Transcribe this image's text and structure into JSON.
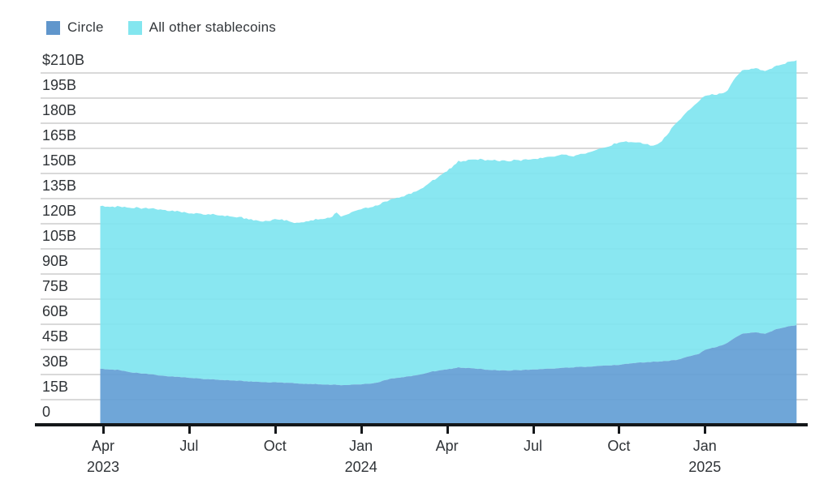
{
  "legend": {
    "items": [
      {
        "label": "Circle",
        "color": "#6096cc"
      },
      {
        "label": "All other stablecoins",
        "color": "#83e6ef"
      }
    ]
  },
  "colors": {
    "circle_area": "#5f9cd4",
    "other_area": "#7ce4ef",
    "gridline": "#d9d9d9",
    "axis": "#14171a",
    "text": "#2f3337"
  },
  "chart_data": {
    "type": "area",
    "stacked": true,
    "title": "",
    "xlabel": "",
    "ylabel": "",
    "unit": "USD billions",
    "ylim": [
      0,
      218
    ],
    "grid": true,
    "legend_position": "top-left",
    "y_tick_values": [
      0,
      15,
      30,
      45,
      60,
      75,
      90,
      105,
      120,
      135,
      150,
      165,
      180,
      195,
      210
    ],
    "y_tick_labels": [
      "0",
      "15B",
      "30B",
      "45B",
      "60B",
      "75B",
      "90B",
      "105B",
      "120B",
      "135B",
      "150B",
      "165B",
      "180B",
      "195B",
      "$210B"
    ],
    "x_axis_unit": "months since Apr 2023",
    "x_ticks": [
      {
        "label": "Apr",
        "year": "2023",
        "m": 0
      },
      {
        "label": "Jul",
        "year": "",
        "m": 3
      },
      {
        "label": "Oct",
        "year": "",
        "m": 6
      },
      {
        "label": "Jan",
        "year": "2024",
        "m": 9
      },
      {
        "label": "Apr",
        "year": "",
        "m": 12
      },
      {
        "label": "Jul",
        "year": "",
        "m": 15
      },
      {
        "label": "Oct",
        "year": "",
        "m": 18
      },
      {
        "label": "Jan",
        "year": "2025",
        "m": 21
      }
    ],
    "x": [
      -0.1,
      0.5,
      1,
      1.5,
      2,
      2.5,
      3,
      3.5,
      4,
      4.5,
      5,
      5.5,
      6,
      6.4,
      6.6,
      7,
      7.5,
      8,
      8.15,
      8.3,
      8.5,
      9,
      9.5,
      10,
      10.5,
      11,
      11.5,
      12,
      12.4,
      13,
      13.5,
      14,
      14.5,
      15,
      15.5,
      16,
      16.5,
      17,
      17.5,
      18,
      18.5,
      19,
      19.2,
      19.5,
      20,
      20.4,
      20.8,
      21,
      21.5,
      21.8,
      22,
      22.3,
      22.7,
      23.1,
      23.5,
      23.8,
      24.2
    ],
    "series": [
      {
        "name": "Circle",
        "values": [
          33.4,
          32.8,
          31.3,
          30.4,
          29.4,
          28.7,
          28.1,
          27.4,
          26.9,
          26.5,
          26.0,
          25.6,
          25.3,
          25.1,
          25.0,
          24.5,
          24.2,
          23.9,
          23.9,
          23.8,
          23.8,
          24.0,
          25.0,
          27.3,
          28.5,
          29.7,
          31.8,
          33.0,
          34.2,
          33.6,
          32.7,
          32.4,
          32.6,
          32.9,
          33.4,
          33.9,
          34.4,
          34.8,
          35.3,
          35.8,
          36.8,
          37.4,
          37.6,
          37.9,
          38.6,
          40.6,
          42.3,
          44.7,
          46.9,
          49.0,
          51.5,
          54.3,
          55.2,
          54.4,
          57.0,
          58.3,
          59.5
        ]
      },
      {
        "name": "All other stablecoins",
        "values": [
          97.1,
          97.4,
          98.4,
          98.8,
          99.1,
          98.9,
          98.3,
          98.4,
          98.3,
          97.9,
          97.2,
          96.0,
          97.1,
          97.1,
          95.7,
          96.7,
          98.4,
          100.2,
          103.0,
          100.9,
          101.9,
          104.4,
          105.8,
          106.7,
          108.0,
          110.1,
          113.8,
          118.2,
          123.0,
          124.9,
          125.3,
          125.1,
          125.3,
          125.4,
          126.2,
          127.3,
          126.0,
          128.4,
          130.0,
          133.0,
          131.9,
          130.1,
          128.6,
          131.6,
          141.4,
          146.4,
          150.7,
          151.8,
          150.4,
          150.5,
          154.5,
          157.2,
          157.6,
          156.9,
          157.0,
          157.5,
          158.0
        ]
      }
    ]
  }
}
